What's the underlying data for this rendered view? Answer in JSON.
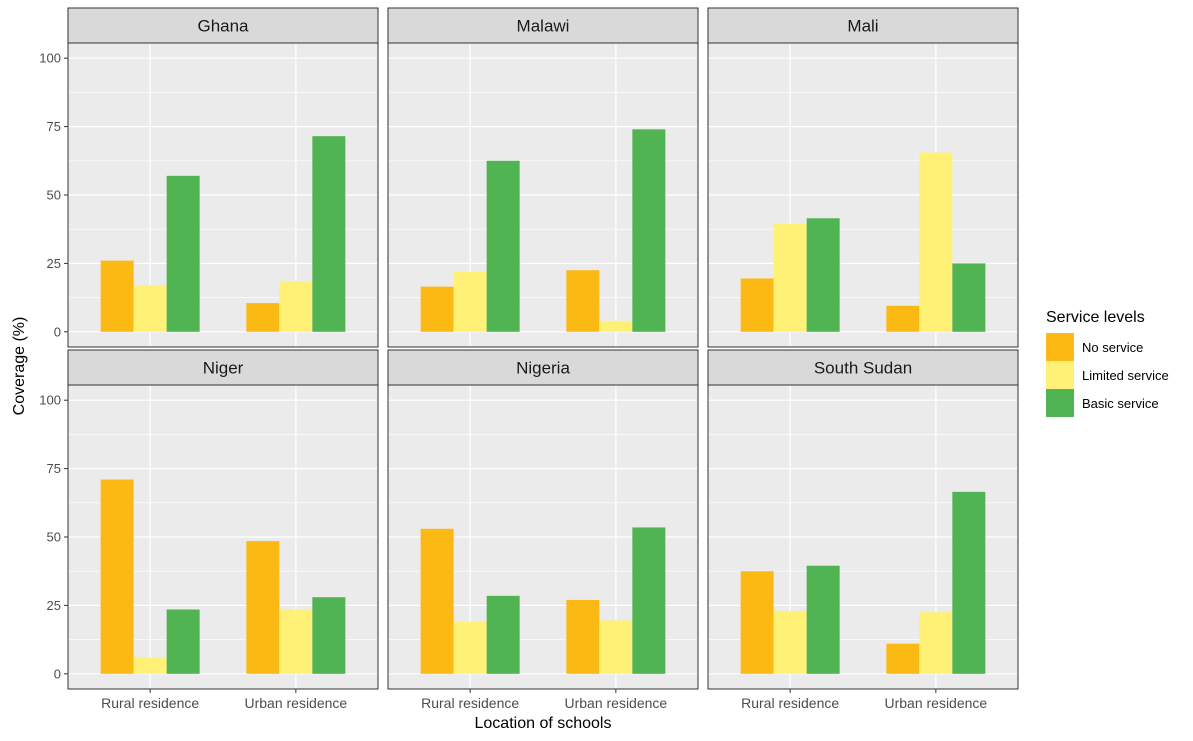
{
  "chart_data": {
    "type": "bar",
    "facets": [
      "Ghana",
      "Malawi",
      "Mali",
      "Niger",
      "Nigeria",
      "South Sudan"
    ],
    "categories": [
      "Rural residence",
      "Urban residence"
    ],
    "xlabel": "Location of schools",
    "ylabel": "Coverage (%)",
    "ylim": [
      0,
      100
    ],
    "yticks": [
      0,
      25,
      50,
      75,
      100
    ],
    "grid": true,
    "legend": {
      "title": "Service levels",
      "position": "right",
      "entries": [
        {
          "name": "No service",
          "color": "#FDB913"
        },
        {
          "name": "Limited service",
          "color": "#FFF176"
        },
        {
          "name": "Basic service",
          "color": "#51B453"
        }
      ]
    },
    "data": {
      "Ghana": {
        "No service": [
          26,
          10.5
        ],
        "Limited service": [
          17,
          18.5
        ],
        "Basic service": [
          57,
          71.5
        ]
      },
      "Malawi": {
        "No service": [
          16.5,
          22.5
        ],
        "Limited service": [
          22,
          4
        ],
        "Basic service": [
          62.5,
          74
        ]
      },
      "Mali": {
        "No service": [
          19.5,
          9.5
        ],
        "Limited service": [
          39.5,
          65.5
        ],
        "Basic service": [
          41.5,
          25
        ]
      },
      "Niger": {
        "No service": [
          71,
          48.5
        ],
        "Limited service": [
          6,
          23.5
        ],
        "Basic service": [
          23.5,
          28
        ]
      },
      "Nigeria": {
        "No service": [
          53,
          27
        ],
        "Limited service": [
          19,
          19.5
        ],
        "Basic service": [
          28.5,
          53.5
        ]
      },
      "South Sudan": {
        "No service": [
          37.5,
          11
        ],
        "Limited service": [
          23,
          22.5
        ],
        "Basic service": [
          39.5,
          66.5
        ]
      }
    }
  }
}
